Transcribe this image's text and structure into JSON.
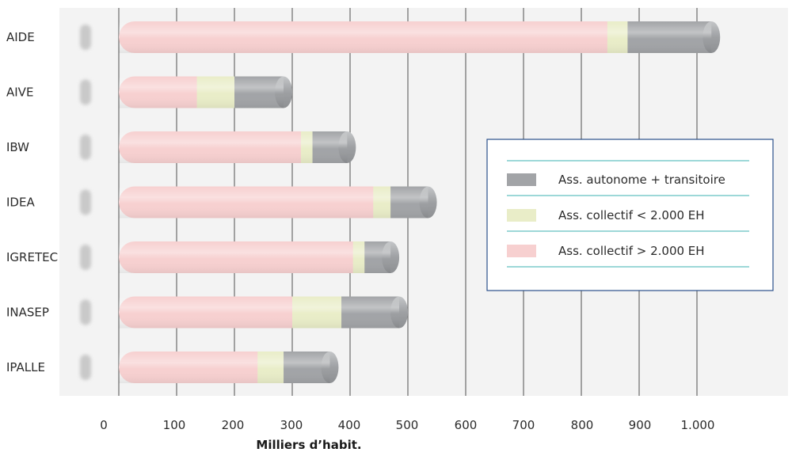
{
  "chart_data": {
    "type": "bar",
    "orientation": "horizontal",
    "stacked": true,
    "categories": [
      "AIDE",
      "AIVE",
      "IBW",
      "IDEA",
      "IGRETEC",
      "INASEP",
      "IPALLE"
    ],
    "series": [
      {
        "name": "Ass. collectif > 2.000 EH",
        "color": "#f7d0d0",
        "values": [
          845,
          135,
          315,
          440,
          405,
          300,
          240
        ]
      },
      {
        "name": "Ass. collectif < 2.000 EH",
        "color": "#e9edc8",
        "values": [
          35,
          65,
          20,
          30,
          20,
          85,
          45
        ]
      },
      {
        "name": "Ass. autonome + transitoire",
        "color": "#a2a4a7",
        "values": [
          145,
          85,
          60,
          65,
          45,
          100,
          80
        ]
      }
    ],
    "xticks": [
      "0",
      "100",
      "200",
      "300",
      "400",
      "500",
      "600",
      "700",
      "800",
      "900",
      "1.000"
    ],
    "xlabel": "Milliers d’habit.",
    "xlim": [
      0,
      1000
    ],
    "grid": "vertical",
    "legend_position": "right",
    "legend_order": [
      "Ass. autonome + transitoire",
      "Ass. collectif < 2.000 EH",
      "Ass. collectif > 2.000 EH"
    ]
  }
}
